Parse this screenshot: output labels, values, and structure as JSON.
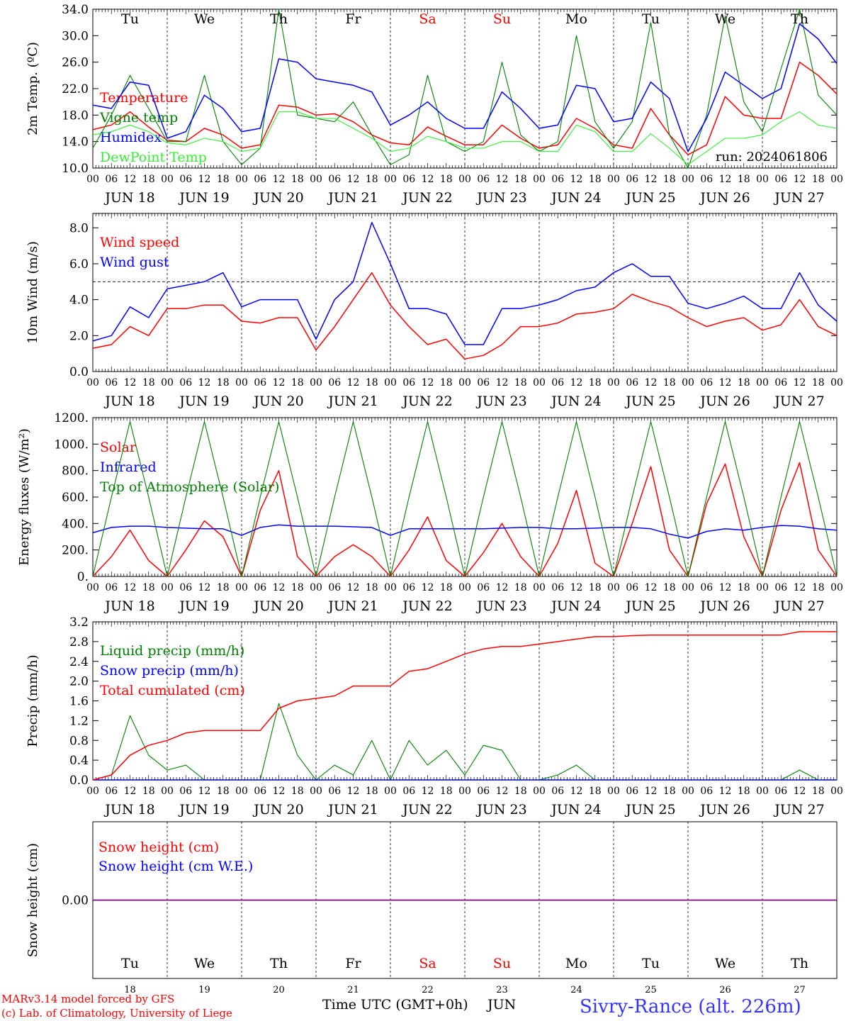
{
  "run_label": "run: 2024061806",
  "days": [
    {
      "dow": "Tu",
      "date": "18",
      "label": "JUN 18",
      "weekend": false
    },
    {
      "dow": "We",
      "date": "19",
      "label": "JUN 19",
      "weekend": false
    },
    {
      "dow": "Th",
      "date": "20",
      "label": "JUN 20",
      "weekend": false
    },
    {
      "dow": "Fr",
      "date": "21",
      "label": "JUN 21",
      "weekend": false
    },
    {
      "dow": "Sa",
      "date": "22",
      "label": "JUN 22",
      "weekend": true
    },
    {
      "dow": "Su",
      "date": "23",
      "label": "JUN 23",
      "weekend": true
    },
    {
      "dow": "Mo",
      "date": "24",
      "label": "JUN 24",
      "weekend": false
    },
    {
      "dow": "Tu",
      "date": "25",
      "label": "JUN 25",
      "weekend": false
    },
    {
      "dow": "We",
      "date": "26",
      "label": "JUN 26",
      "weekend": false
    },
    {
      "dow": "Th",
      "date": "27",
      "label": "JUN 27",
      "weekend": false
    }
  ],
  "hour_ticks": [
    "00",
    "06",
    "12",
    "18"
  ],
  "footer": {
    "model_line1": "MARv3.14 model forced by GFS",
    "model_line2": "(c) Lab. of Climatology, University of Liege",
    "xlabel": "Time UTC (GMT+0h)",
    "month": "JUN",
    "station": "Sivry-Rance (alt. 226m)"
  },
  "colors": {
    "red": "#ff0000",
    "green": "#008000",
    "blue": "#0000ff",
    "lightgreen": "#33ee33",
    "purple": "#800080"
  },
  "chart_data": [
    {
      "type": "line",
      "ylabel": "2m Temp. (ºC)",
      "ylim": [
        10,
        34
      ],
      "yticks": [
        "10.0",
        "14.0",
        "18.0",
        "22.0",
        "26.0",
        "30.0",
        "34.0"
      ],
      "x_hours": [
        0,
        6,
        12,
        18,
        24,
        30,
        36,
        42,
        48,
        54,
        60,
        66,
        72,
        78,
        84,
        90,
        96,
        102,
        108,
        114,
        120,
        126,
        132,
        138,
        144,
        150,
        156,
        162,
        168,
        174,
        180,
        186,
        192,
        198,
        204,
        210,
        216,
        222,
        228,
        234,
        240
      ],
      "series": [
        {
          "name": "Temperature",
          "color": "red",
          "values": [
            15.8,
            16.5,
            18.5,
            16.2,
            14.2,
            14.0,
            16.0,
            15.0,
            13.0,
            13.5,
            19.5,
            19.2,
            18.0,
            18.2,
            17.0,
            15.0,
            13.8,
            13.5,
            16.2,
            14.8,
            13.5,
            13.5,
            16.5,
            14.5,
            13.0,
            13.5,
            17.5,
            16.0,
            13.5,
            13.0,
            19.0,
            15.0,
            12.0,
            13.5,
            20.8,
            18.0,
            17.5,
            17.5,
            26.0,
            24.0,
            21.2
          ]
        },
        {
          "name": "Vigne temp",
          "color": "green",
          "values": [
            13.0,
            18.0,
            24.0,
            19.0,
            14.0,
            14.0,
            24.0,
            14.0,
            10.5,
            13.0,
            34.0,
            18.0,
            17.5,
            17.0,
            20.0,
            15.0,
            10.5,
            12.0,
            24.0,
            14.0,
            12.5,
            14.0,
            26.0,
            15.0,
            12.5,
            14.0,
            30.0,
            17.0,
            13.0,
            17.0,
            32.0,
            15.0,
            10.0,
            18.0,
            33.0,
            20.0,
            15.5,
            25.0,
            34.0,
            21.0,
            18.0
          ]
        },
        {
          "name": "Humidex",
          "color": "blue",
          "values": [
            19.5,
            19.0,
            23.0,
            22.5,
            14.5,
            15.5,
            21.0,
            19.0,
            15.5,
            16.0,
            26.5,
            26.0,
            23.5,
            23.0,
            22.5,
            21.5,
            16.5,
            18.0,
            20.0,
            17.5,
            16.0,
            16.0,
            21.5,
            19.0,
            16.0,
            16.5,
            22.5,
            22.0,
            17.0,
            17.5,
            23.0,
            20.5,
            12.5,
            17.5,
            24.5,
            22.5,
            20.5,
            22.0,
            31.8,
            29.5,
            25.8
          ]
        },
        {
          "name": "DewPoint Temp",
          "color": "lightgreen",
          "values": [
            15.0,
            15.5,
            16.5,
            15.5,
            13.8,
            13.5,
            14.5,
            14.0,
            12.5,
            13.0,
            18.5,
            18.5,
            17.5,
            17.5,
            16.0,
            14.5,
            12.5,
            13.0,
            14.8,
            14.0,
            13.0,
            13.0,
            14.0,
            14.0,
            12.5,
            12.5,
            16.5,
            15.5,
            12.5,
            12.5,
            15.2,
            13.0,
            10.5,
            12.5,
            14.5,
            14.5,
            15.0,
            17.0,
            18.5,
            16.5,
            16.0
          ]
        }
      ]
    },
    {
      "type": "line",
      "ylabel": "10m Wind (m/s)",
      "ylim": [
        0,
        8.8
      ],
      "yticks": [
        "0.0",
        "2.0",
        "4.0",
        "6.0",
        "8.0"
      ],
      "reference_line": 5.0,
      "x_hours": [
        0,
        6,
        12,
        18,
        24,
        30,
        36,
        42,
        48,
        54,
        60,
        66,
        72,
        78,
        84,
        90,
        96,
        102,
        108,
        114,
        120,
        126,
        132,
        138,
        144,
        150,
        156,
        162,
        168,
        174,
        180,
        186,
        192,
        198,
        204,
        210,
        216,
        222,
        228,
        234,
        240
      ],
      "series": [
        {
          "name": "Wind speed",
          "color": "red",
          "values": [
            1.3,
            1.5,
            2.5,
            2.0,
            3.5,
            3.5,
            3.7,
            3.7,
            2.8,
            2.7,
            3.0,
            3.0,
            1.2,
            2.5,
            4.0,
            5.5,
            3.7,
            2.5,
            1.5,
            1.8,
            0.7,
            0.9,
            1.5,
            2.5,
            2.5,
            2.7,
            3.2,
            3.3,
            3.5,
            4.3,
            3.9,
            3.6,
            3.0,
            2.5,
            2.8,
            3.0,
            2.3,
            2.6,
            4.0,
            2.5,
            2.0
          ]
        },
        {
          "name": "Wind gust",
          "color": "blue",
          "values": [
            1.7,
            2.0,
            3.6,
            3.0,
            4.6,
            4.8,
            5.0,
            5.5,
            3.6,
            4.0,
            4.0,
            4.0,
            1.8,
            4.0,
            5.0,
            8.3,
            6.0,
            3.5,
            3.5,
            3.2,
            1.5,
            1.5,
            3.5,
            3.5,
            3.7,
            4.0,
            4.5,
            4.7,
            5.5,
            6.0,
            5.3,
            5.3,
            3.8,
            3.5,
            3.8,
            4.2,
            3.5,
            3.5,
            5.5,
            3.7,
            2.8
          ]
        }
      ]
    },
    {
      "type": "line",
      "ylabel": "Energy fluxes (W/m²)",
      "ylim": [
        0,
        1200
      ],
      "yticks": [
        "0.",
        "200.",
        "400.",
        "600.",
        "800.",
        "1000.",
        "1200."
      ],
      "x_hours": [
        0,
        6,
        12,
        18,
        24,
        30,
        36,
        42,
        48,
        54,
        60,
        66,
        72,
        78,
        84,
        90,
        96,
        102,
        108,
        114,
        120,
        126,
        132,
        138,
        144,
        150,
        156,
        162,
        168,
        174,
        180,
        186,
        192,
        198,
        204,
        210,
        216,
        222,
        228,
        234,
        240
      ],
      "series": [
        {
          "name": "Solar",
          "color": "red",
          "values": [
            0,
            150,
            350,
            120,
            0,
            200,
            420,
            300,
            0,
            500,
            800,
            150,
            0,
            150,
            240,
            150,
            0,
            200,
            450,
            120,
            0,
            180,
            400,
            150,
            0,
            250,
            650,
            100,
            0,
            400,
            830,
            200,
            0,
            550,
            850,
            300,
            0,
            500,
            860,
            200,
            0
          ]
        },
        {
          "name": "Infrared",
          "color": "blue",
          "values": [
            330,
            370,
            380,
            380,
            370,
            365,
            360,
            360,
            310,
            370,
            390,
            380,
            380,
            380,
            375,
            370,
            310,
            360,
            360,
            360,
            360,
            360,
            365,
            370,
            370,
            360,
            360,
            365,
            370,
            370,
            360,
            320,
            290,
            340,
            360,
            350,
            370,
            385,
            380,
            360,
            350
          ]
        },
        {
          "name": "Top of Atmosphere (Solar)",
          "color": "green",
          "values": [
            0,
            600,
            1170,
            600,
            0,
            600,
            1170,
            600,
            0,
            600,
            1170,
            600,
            0,
            600,
            1170,
            600,
            0,
            600,
            1170,
            600,
            0,
            600,
            1170,
            600,
            0,
            600,
            1170,
            600,
            0,
            600,
            1170,
            600,
            0,
            600,
            1170,
            600,
            0,
            600,
            1170,
            600,
            0
          ]
        }
      ]
    },
    {
      "type": "line",
      "ylabel": "Precip (mm/h)",
      "ylim": [
        0,
        3.2
      ],
      "yticks": [
        "0.0",
        "0.4",
        "0.8",
        "1.2",
        "1.6",
        "2.0",
        "2.4",
        "2.8",
        "3.2"
      ],
      "x_hours": [
        0,
        6,
        12,
        18,
        24,
        30,
        36,
        42,
        48,
        54,
        60,
        66,
        72,
        78,
        84,
        90,
        96,
        102,
        108,
        114,
        120,
        126,
        132,
        138,
        144,
        150,
        156,
        162,
        168,
        174,
        180,
        186,
        192,
        198,
        204,
        210,
        216,
        222,
        228,
        234,
        240
      ],
      "series": [
        {
          "name": "Liquid precip (mm/h)",
          "color": "green",
          "values": [
            0,
            0.1,
            1.3,
            0.5,
            0.2,
            0.3,
            0,
            0,
            0,
            0,
            1.55,
            0.5,
            0,
            0.3,
            0.1,
            0.8,
            0,
            0.8,
            0.3,
            0.6,
            0.1,
            0.7,
            0.6,
            0,
            0,
            0.1,
            0.3,
            0,
            0,
            0,
            0,
            0,
            0,
            0,
            0,
            0,
            0,
            0,
            0.2,
            0,
            0
          ]
        },
        {
          "name": "Snow precip (mm/h)",
          "color": "blue",
          "values": [
            0,
            0,
            0,
            0,
            0,
            0,
            0,
            0,
            0,
            0,
            0,
            0,
            0,
            0,
            0,
            0,
            0,
            0,
            0,
            0,
            0,
            0,
            0,
            0,
            0,
            0,
            0,
            0,
            0,
            0,
            0,
            0,
            0,
            0,
            0,
            0,
            0,
            0,
            0,
            0,
            0
          ]
        },
        {
          "name": "Total cumulated (cm)",
          "color": "red",
          "values": [
            0,
            0.1,
            0.5,
            0.7,
            0.8,
            0.95,
            1.0,
            1.0,
            1.0,
            1.0,
            1.45,
            1.6,
            1.65,
            1.7,
            1.9,
            1.9,
            1.9,
            2.2,
            2.25,
            2.4,
            2.55,
            2.65,
            2.7,
            2.7,
            2.75,
            2.8,
            2.85,
            2.9,
            2.9,
            2.92,
            2.93,
            2.93,
            2.93,
            2.93,
            2.93,
            2.93,
            2.93,
            2.93,
            3.0,
            3.0,
            3.0
          ]
        }
      ]
    },
    {
      "type": "line",
      "ylabel": "Snow height (cm)",
      "ylim": [
        -1,
        1
      ],
      "yticks": [
        "0.00"
      ],
      "x_hours": [
        0,
        240
      ],
      "series": [
        {
          "name": "Snow height (cm)",
          "color": "red",
          "values": [
            0,
            0
          ]
        },
        {
          "name": "Snow height (cm W.E.)",
          "color": "blue",
          "values": [
            0,
            0
          ]
        }
      ]
    }
  ]
}
